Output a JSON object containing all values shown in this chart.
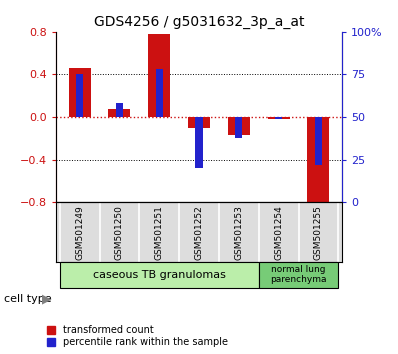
{
  "title": "GDS4256 / g5031632_3p_a_at",
  "samples": [
    "GSM501249",
    "GSM501250",
    "GSM501251",
    "GSM501252",
    "GSM501253",
    "GSM501254",
    "GSM501255"
  ],
  "transformed_count": [
    0.46,
    0.08,
    0.78,
    -0.1,
    -0.17,
    -0.02,
    -0.82
  ],
  "percentile_rank": [
    75,
    58,
    78,
    20,
    38,
    49,
    22
  ],
  "ylim_left": [
    -0.8,
    0.8
  ],
  "yticks_left": [
    -0.8,
    -0.4,
    0.0,
    0.4,
    0.8
  ],
  "ytick_labels_right": [
    "0",
    "25",
    "50",
    "75",
    "100%"
  ],
  "bar_color_red": "#cc1111",
  "bar_color_blue": "#2222cc",
  "legend_red": "transformed count",
  "legend_blue": "percentile rank within the sample",
  "cell_type_label": "cell type",
  "bar_width": 0.55,
  "blue_bar_width": 0.18,
  "cell_type_groups": [
    {
      "label": "caseous TB granulomas",
      "indices": [
        0,
        1,
        2,
        3,
        4
      ],
      "color": "#bbeeaa"
    },
    {
      "label": "normal lung\nparenchyma",
      "indices": [
        5,
        6
      ],
      "color": "#77cc77"
    }
  ]
}
